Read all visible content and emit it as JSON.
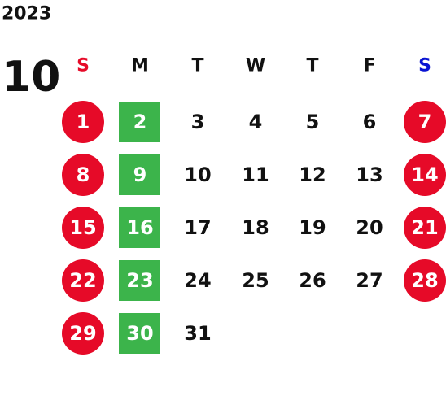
{
  "year": "2023",
  "month": "10",
  "weekdays": [
    "S",
    "M",
    "T",
    "W",
    "T",
    "F",
    "S"
  ],
  "weeks": [
    [
      1,
      2,
      3,
      4,
      5,
      6,
      7
    ],
    [
      8,
      9,
      10,
      11,
      12,
      13,
      14
    ],
    [
      15,
      16,
      17,
      18,
      19,
      20,
      21
    ],
    [
      22,
      23,
      24,
      25,
      26,
      27,
      28
    ],
    [
      29,
      30,
      31
    ]
  ]
}
